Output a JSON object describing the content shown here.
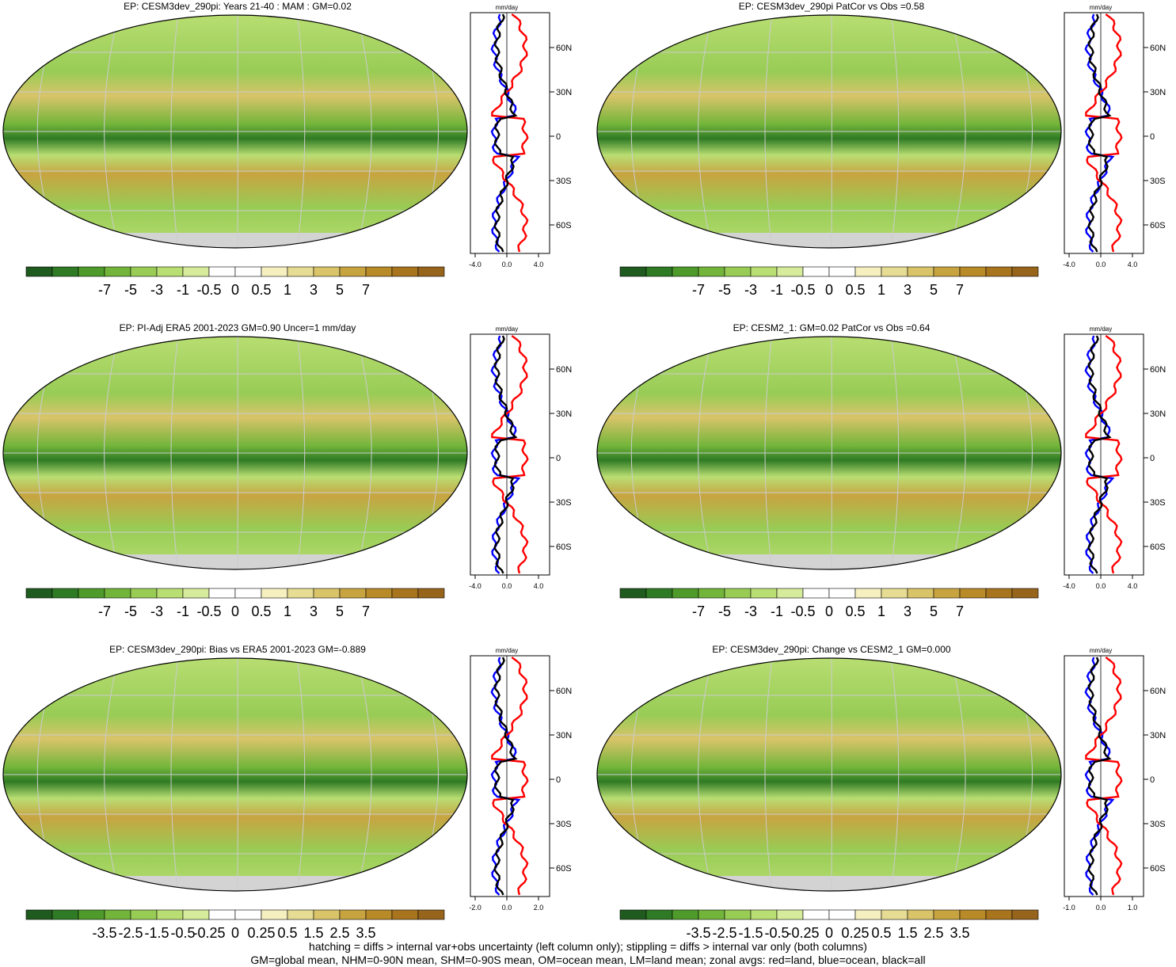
{
  "panels": [
    {
      "title": "EP: CESM3dev_290pi: Years 21-40 : MAM : GM=0.02",
      "colorbar_labels": [
        "-7",
        "-5",
        "-3",
        "-1",
        "-0.5",
        "0",
        "0.5",
        "1",
        "3",
        "5",
        "7"
      ],
      "zonal_axis": {
        "unit": "mm/day",
        "x_ticks": [
          "-4.0",
          "0.0",
          "4.0"
        ],
        "y_ticks": [
          "60N",
          "30N",
          "0",
          "30S",
          "60S"
        ]
      }
    },
    {
      "title": "EP: CESM3dev_290pi PatCor vs Obs =0.58",
      "colorbar_labels": [
        "-7",
        "-5",
        "-3",
        "-1",
        "-0.5",
        "0",
        "0.5",
        "1",
        "3",
        "5",
        "7"
      ],
      "zonal_axis": {
        "unit": "mm/day",
        "x_ticks": [
          "-4.0",
          "0.0",
          "4.0"
        ],
        "y_ticks": [
          "60N",
          "30N",
          "0",
          "30S",
          "60S"
        ]
      }
    },
    {
      "title": "EP: PI-Adj ERA5 2001-2023 GM=0.90 Uncer=1 mm/day",
      "colorbar_labels": [
        "-7",
        "-5",
        "-3",
        "-1",
        "-0.5",
        "0",
        "0.5",
        "1",
        "3",
        "5",
        "7"
      ],
      "zonal_axis": {
        "unit": "mm/day",
        "x_ticks": [
          "-4.0",
          "0.0",
          "4.0"
        ],
        "y_ticks": [
          "60N",
          "30N",
          "0",
          "30S",
          "60S"
        ]
      }
    },
    {
      "title": "EP: CESM2_1: GM=0.02 PatCor vs Obs =0.64",
      "colorbar_labels": [
        "-7",
        "-5",
        "-3",
        "-1",
        "-0.5",
        "0",
        "0.5",
        "1",
        "3",
        "5",
        "7"
      ],
      "zonal_axis": {
        "unit": "mm/day",
        "x_ticks": [
          "-4.0",
          "0.0",
          "4.0"
        ],
        "y_ticks": [
          "60N",
          "30N",
          "0",
          "30S",
          "60S"
        ]
      }
    },
    {
      "title": "EP: CESM3dev_290pi: Bias vs ERA5 2001-2023 GM=-0.889",
      "colorbar_labels": [
        "-3.5",
        "-2.5",
        "-1.5",
        "-0.5",
        "-0.25",
        "0",
        "0.25",
        "0.5",
        "1.5",
        "2.5",
        "3.5"
      ],
      "zonal_axis": {
        "unit": "mm/day",
        "x_ticks": [
          "-2.0",
          "0.0",
          "2.0"
        ],
        "y_ticks": [
          "60N",
          "30N",
          "0",
          "30S",
          "60S"
        ]
      }
    },
    {
      "title": "EP: CESM3dev_290pi: Change vs CESM2_1 GM=0.000",
      "colorbar_labels": [
        "-3.5",
        "-2.5",
        "-1.5",
        "-0.5",
        "-0.25",
        "0",
        "0.25",
        "0.5",
        "1.5",
        "2.5",
        "3.5"
      ],
      "zonal_axis": {
        "unit": "mm/day",
        "x_ticks": [
          "-1.0",
          "0.0",
          "1.0"
        ],
        "y_ticks": [
          "60N",
          "30N",
          "0",
          "30S",
          "60S"
        ]
      }
    }
  ],
  "colorbar_colors": [
    "#1f5a1f",
    "#2f7a24",
    "#4e9a2a",
    "#72b53a",
    "#98cc55",
    "#b9de73",
    "#d6ec9c",
    "#ffffff",
    "#ffffff",
    "#f6efc0",
    "#e7dc94",
    "#d9c46a",
    "#c8a441",
    "#b88a28",
    "#a8741e",
    "#97641c"
  ],
  "zonal_colors": {
    "land": "#ff0000",
    "ocean": "#0000ff",
    "all": "#000000"
  },
  "footer": {
    "line1": "hatching = diffs > internal var+obs uncertainty (left column only); stippling = diffs > internal var only (both columns)",
    "line2": "GM=global mean, NHM=0-90N mean, SHM=0-90S mean, OM=ocean mean, LM=land mean; zonal avgs: red=land, blue=ocean, black=all"
  }
}
